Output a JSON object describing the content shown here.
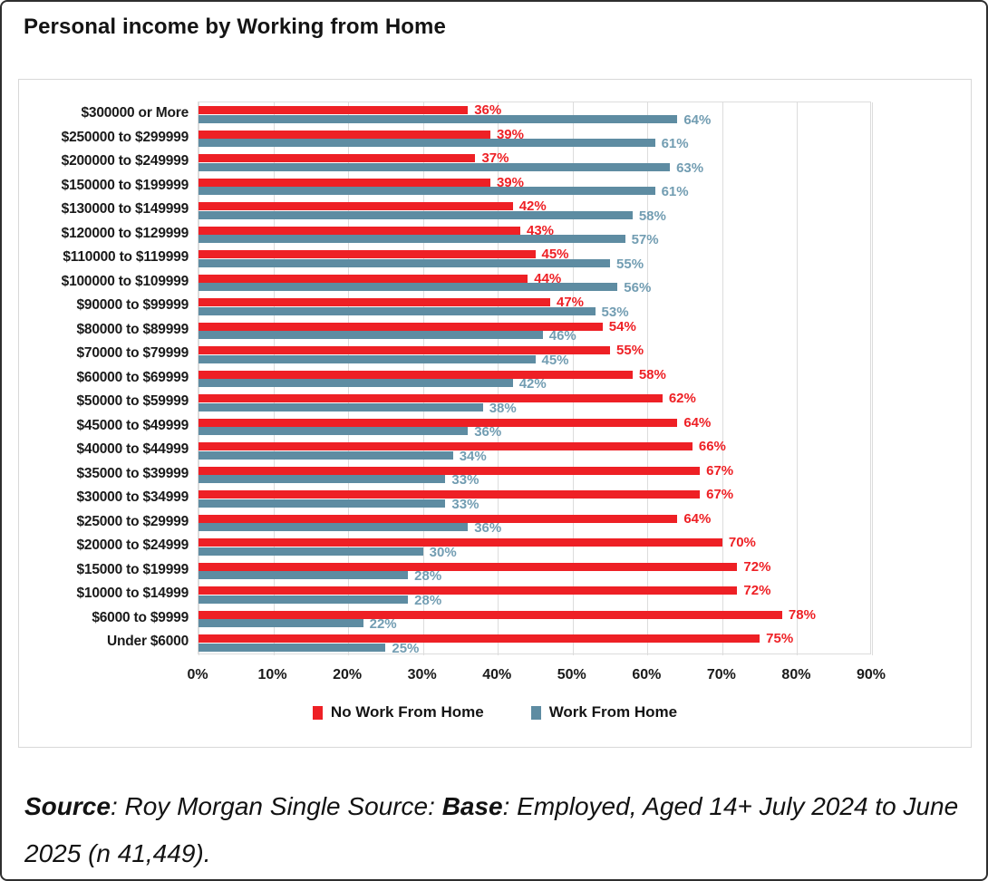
{
  "chart_data": {
    "type": "bar",
    "orientation": "horizontal",
    "title": "Personal income by Working from Home",
    "categories": [
      "$300000 or More",
      "$250000 to $299999",
      "$200000 to $249999",
      "$150000 to $199999",
      "$130000 to $149999",
      "$120000 to $129999",
      "$110000 to $119999",
      "$100000 to $109999",
      "$90000 to $99999",
      "$80000 to $89999",
      "$70000 to $79999",
      "$60000 to $69999",
      "$50000 to $59999",
      "$45000 to $49999",
      "$40000 to $44999",
      "$35000 to $39999",
      "$30000 to $34999",
      "$25000 to $29999",
      "$20000 to $24999",
      "$15000 to $19999",
      "$10000 to $14999",
      "$6000 to $9999",
      "Under $6000"
    ],
    "series": [
      {
        "name": "No Work From Home",
        "color": "#ee2025",
        "label_color": "#ee2025",
        "values": [
          36,
          39,
          37,
          39,
          42,
          43,
          45,
          44,
          47,
          54,
          55,
          58,
          62,
          64,
          66,
          67,
          67,
          64,
          70,
          72,
          72,
          78,
          75
        ]
      },
      {
        "name": "Work From Home",
        "color": "#5e8ca2",
        "label_color": "#729db2",
        "values": [
          64,
          61,
          63,
          61,
          58,
          57,
          55,
          56,
          53,
          46,
          45,
          42,
          38,
          36,
          34,
          33,
          33,
          36,
          30,
          28,
          28,
          22,
          25
        ]
      }
    ],
    "x_ticks": [
      "0%",
      "10%",
      "20%",
      "30%",
      "40%",
      "50%",
      "60%",
      "70%",
      "80%",
      "90%"
    ],
    "axis_max": 90,
    "value_suffix": "%",
    "grid": true,
    "legend_position": "bottom"
  },
  "footer": {
    "source_label": "Source",
    "after_source": ": Roy Morgan Single Source: ",
    "base_label": "Base",
    "after_base": ": Employed, Aged 14+ July 2024 to June 2025 (n 41,449)."
  }
}
